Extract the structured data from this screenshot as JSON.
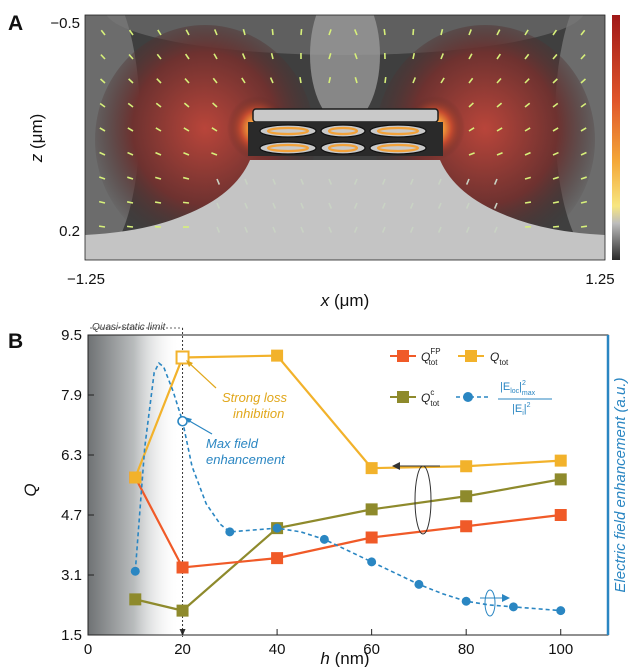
{
  "panels": {
    "a": {
      "letter": "A"
    },
    "b": {
      "letter": "B"
    }
  },
  "chart_data": [
    {
      "panel": "A",
      "type": "heatmap",
      "xlabel_var": "x",
      "xlabel_unit": "(μm)",
      "ylabel_var": "z",
      "ylabel_unit": "(μm)",
      "xlim": [
        -1.25,
        1.25
      ],
      "ylim": [
        0.2,
        -0.5
      ],
      "x_tick_labels": [
        "−1.25",
        "1.25"
      ],
      "y_tick_labels": [
        "−0.5",
        "0.2"
      ],
      "colormap": [
        "#ffffff",
        "#f6e27a",
        "#f0a03a",
        "#d2533a",
        "#8a2a2a",
        "#2a2a2a"
      ]
    },
    {
      "panel": "B",
      "type": "line",
      "xlabel_var": "h",
      "xlabel_unit": "(nm)",
      "ylabel": "Q",
      "ylabel_right": "Electric field enhancement (a.u.)",
      "xlim": [
        0,
        110
      ],
      "ylim": [
        1.5,
        9.5
      ],
      "x_ticks": [
        0,
        20,
        40,
        60,
        80,
        100
      ],
      "y_ticks": [
        1.5,
        3.1,
        4.7,
        6.3,
        7.9,
        9.5
      ],
      "y_tick_labels": [
        "1.5",
        "3.1",
        "4.7",
        "6.3",
        "7.9",
        "9.5"
      ],
      "series": [
        {
          "key": "qtot_fp",
          "color": "#f05a28",
          "marker": "square",
          "x": [
            10,
            20,
            40,
            60,
            80,
            100
          ],
          "y": [
            5.7,
            3.3,
            3.55,
            4.1,
            4.4,
            4.7
          ]
        },
        {
          "key": "qtot",
          "color": "#f2b22b",
          "marker": "square",
          "x": [
            10,
            20,
            40,
            60,
            80,
            100
          ],
          "y": [
            5.7,
            8.9,
            8.95,
            5.95,
            6.0,
            6.15
          ]
        },
        {
          "key": "qtot_c",
          "color": "#8e8a2c",
          "marker": "square",
          "x": [
            10,
            20,
            40,
            60,
            80,
            100
          ],
          "y": [
            2.45,
            2.15,
            4.35,
            4.85,
            5.2,
            5.65
          ]
        },
        {
          "key": "field",
          "color": "#2a86c2",
          "marker": "circle",
          "dashed": true,
          "x": [
            10,
            20,
            30,
            40,
            50,
            60,
            70,
            80,
            90,
            100
          ],
          "y": [
            3.2,
            7.2,
            4.25,
            4.35,
            4.05,
            3.45,
            2.85,
            2.4,
            2.25,
            2.15
          ],
          "curve_x": [
            10,
            12,
            14,
            15,
            16,
            18,
            20,
            22,
            25,
            28,
            30,
            35,
            40,
            45,
            50,
            55,
            60,
            65,
            70,
            75,
            80,
            85,
            90,
            95,
            100
          ],
          "curve_y": [
            3.2,
            6.5,
            8.5,
            8.75,
            8.65,
            8.0,
            7.2,
            6.0,
            5.0,
            4.45,
            4.25,
            4.3,
            4.35,
            4.25,
            4.05,
            3.75,
            3.45,
            3.15,
            2.85,
            2.6,
            2.4,
            2.3,
            2.25,
            2.2,
            2.15
          ]
        }
      ],
      "legend": {
        "qtot_fp": {
          "main": "Q",
          "sub": "tot",
          "sup": "FP"
        },
        "qtot": {
          "main": "Q",
          "sub": "tot",
          "sup": ""
        },
        "qtot_c": {
          "main": "Q",
          "sub": "tot",
          "sup": "c"
        },
        "field": {
          "num_main": "|E",
          "num_sub": "loc",
          "num_close": "|",
          "num_sup": "2",
          "num_sub2": "max",
          "den_main": "|E",
          "den_sub": "i",
          "den_close": "|",
          "den_sup": "2"
        }
      },
      "annotations": {
        "quasi_static": "Quasi-static limit",
        "loss_line1": "Strong loss",
        "loss_line2": "inhibition",
        "field_line1": "Max field",
        "field_line2": "enhancement"
      },
      "open_markers": [
        {
          "series": "qtot",
          "x": 20,
          "y": 8.9
        },
        {
          "series": "field",
          "x": 20,
          "y": 7.2
        }
      ]
    }
  ]
}
